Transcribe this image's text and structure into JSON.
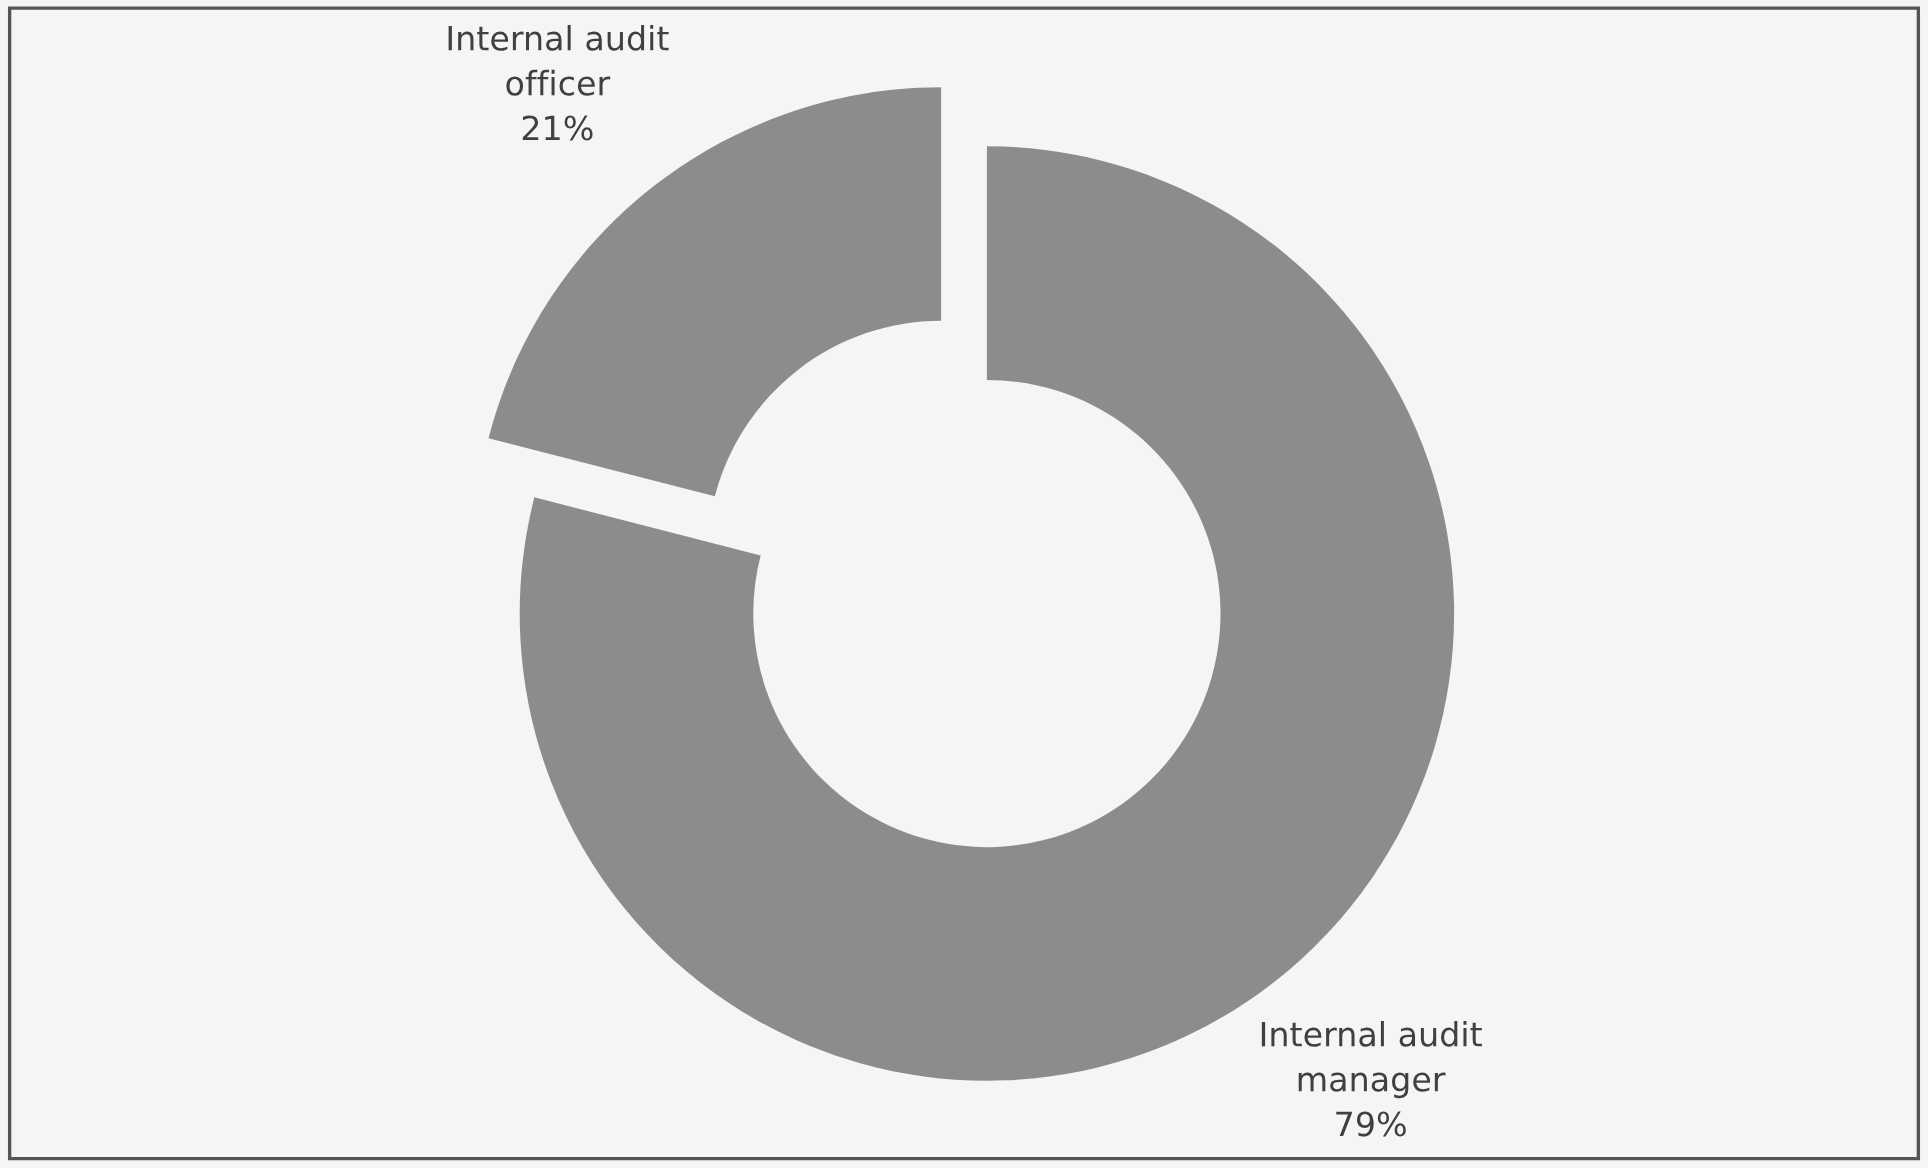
{
  "chart_data": {
    "type": "donut",
    "categories": [
      "Internal audit\nmanager",
      "Internal audit\nofficer"
    ],
    "values": [
      79,
      21
    ],
    "colors": [
      "#8c8c8c",
      "#8c8c8c"
    ],
    "value_labels": [
      "79%",
      "21%"
    ],
    "legend": false
  }
}
